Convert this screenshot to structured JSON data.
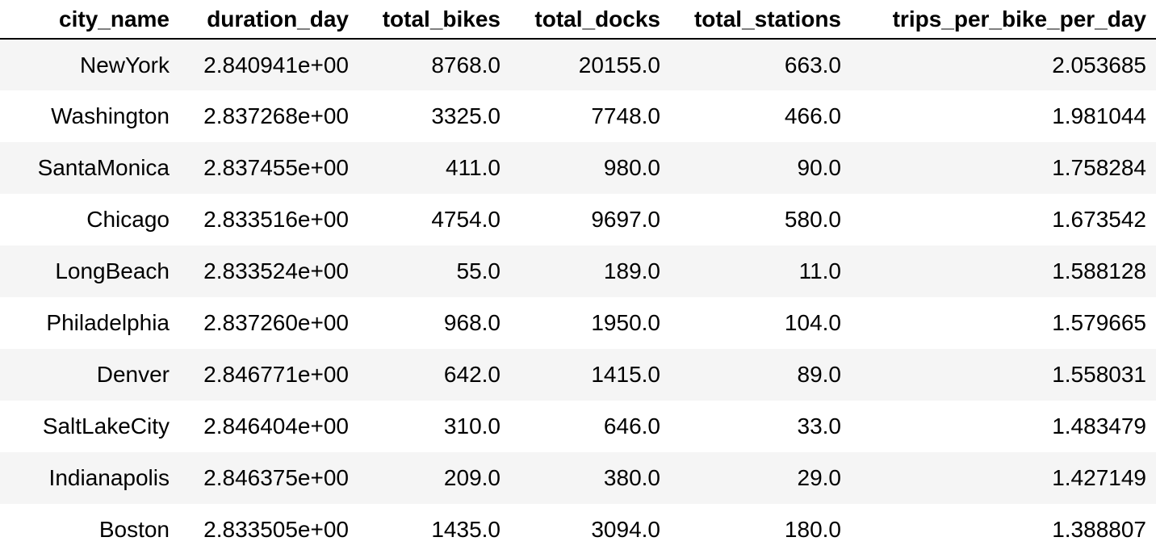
{
  "table": {
    "columns": [
      "city_name",
      "duration_day",
      "total_bikes",
      "total_docks",
      "total_stations",
      "trips_per_bike_per_day"
    ],
    "rows": [
      [
        "NewYork",
        "2.840941e+00",
        "8768.0",
        "20155.0",
        "663.0",
        "2.053685"
      ],
      [
        "Washington",
        "2.837268e+00",
        "3325.0",
        "7748.0",
        "466.0",
        "1.981044"
      ],
      [
        "SantaMonica",
        "2.837455e+00",
        "411.0",
        "980.0",
        "90.0",
        "1.758284"
      ],
      [
        "Chicago",
        "2.833516e+00",
        "4754.0",
        "9697.0",
        "580.0",
        "1.673542"
      ],
      [
        "LongBeach",
        "2.833524e+00",
        "55.0",
        "189.0",
        "11.0",
        "1.588128"
      ],
      [
        "Philadelphia",
        "2.837260e+00",
        "968.0",
        "1950.0",
        "104.0",
        "1.579665"
      ],
      [
        "Denver",
        "2.846771e+00",
        "642.0",
        "1415.0",
        "89.0",
        "1.558031"
      ],
      [
        "SaltLakeCity",
        "2.846404e+00",
        "310.0",
        "646.0",
        "33.0",
        "1.483479"
      ],
      [
        "Indianapolis",
        "2.846375e+00",
        "209.0",
        "380.0",
        "29.0",
        "1.427149"
      ],
      [
        "Boston",
        "2.833505e+00",
        "1435.0",
        "3094.0",
        "180.0",
        "1.388807"
      ]
    ]
  }
}
